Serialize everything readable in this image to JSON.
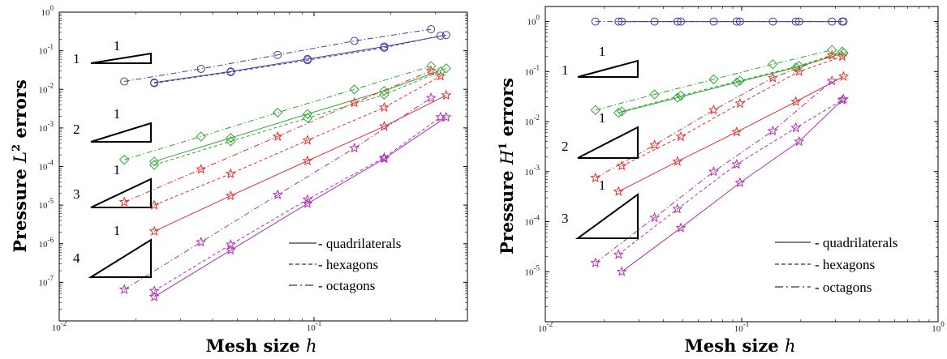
{
  "colors": {
    "p1": "#3f3f9e",
    "p2": "#2fa62f",
    "p3": "#e03030",
    "p4": "#b030b0",
    "frame": "#000000"
  },
  "chart_data": [
    {
      "type": "line",
      "xscale": "log",
      "yscale": "log",
      "xlim": [
        0.01,
        0.4
      ],
      "ylim": [
        1e-08,
        1
      ],
      "xticks": [
        "10",
        "10"
      ],
      "xtick_exp": [
        "-2",
        "-1"
      ],
      "yticks_exp": [
        "0",
        "-1",
        "-2",
        "-3",
        "-4",
        "-5",
        "-6",
        "-7"
      ],
      "ytick_base": "10",
      "xlabel": "Mesh size",
      "xlabel_math": "h",
      "ylabel": "Pressure",
      "ylabel_math": "L",
      "ylabel_sup": "2",
      "ylabel_suffix": "errors",
      "legend": [
        {
          "label": "- quadrilaterals",
          "style": "solid"
        },
        {
          "label": "- hexagons",
          "style": "dashed"
        },
        {
          "label": "- octagons",
          "style": "dashdot"
        }
      ],
      "slope_triangles": [
        {
          "label": "1",
          "run": "1"
        },
        {
          "label": "2",
          "run": "1"
        },
        {
          "label": "3",
          "run": "1"
        },
        {
          "label": "4",
          "run": "1"
        }
      ],
      "series": [
        {
          "degree": 1,
          "style": "solid",
          "marker": "circle",
          "x": [
            0.0236,
            0.0471,
            0.0943,
            0.1886,
            0.3301
          ],
          "y": [
            0.015,
            0.029,
            0.061,
            0.128,
            0.255
          ]
        },
        {
          "degree": 1,
          "style": "dashed",
          "marker": "circle",
          "x": [
            0.0236,
            0.0471,
            0.0943,
            0.1886,
            0.3137
          ],
          "y": [
            0.0145,
            0.028,
            0.057,
            0.12,
            0.245
          ]
        },
        {
          "degree": 1,
          "style": "dashdot",
          "marker": "circle",
          "x": [
            0.018,
            0.036,
            0.072,
            0.144,
            0.288
          ],
          "y": [
            0.016,
            0.034,
            0.078,
            0.18,
            0.36
          ]
        },
        {
          "degree": 2,
          "style": "solid",
          "marker": "diamond",
          "x": [
            0.0236,
            0.0471,
            0.0943,
            0.1886,
            0.3301
          ],
          "y": [
            0.000135,
            0.00055,
            0.0023,
            0.0091,
            0.035
          ]
        },
        {
          "degree": 2,
          "style": "dashed",
          "marker": "diamond",
          "x": [
            0.0236,
            0.0471,
            0.0943,
            0.1886,
            0.3137
          ],
          "y": [
            0.00011,
            0.00045,
            0.0018,
            0.0073,
            0.029
          ]
        },
        {
          "degree": 2,
          "style": "dashdot",
          "marker": "diamond",
          "x": [
            0.018,
            0.036,
            0.072,
            0.144,
            0.288
          ],
          "y": [
            0.00015,
            0.0006,
            0.0025,
            0.01,
            0.04
          ]
        },
        {
          "degree": 3,
          "style": "solid",
          "marker": "star",
          "x": [
            0.0236,
            0.0471,
            0.0943,
            0.1886,
            0.3301
          ],
          "y": [
            2.1e-06,
            1.75e-05,
            0.00014,
            0.0011,
            0.007
          ]
        },
        {
          "degree": 3,
          "style": "dashed",
          "marker": "star",
          "x": [
            0.0236,
            0.0471,
            0.0943,
            0.1886,
            0.3137
          ],
          "y": [
            1e-05,
            6.5e-05,
            0.00048,
            0.0034,
            0.022
          ]
        },
        {
          "degree": 3,
          "style": "dashdot",
          "marker": "star",
          "x": [
            0.018,
            0.036,
            0.072,
            0.144,
            0.288
          ],
          "y": [
            1.2e-05,
            8.5e-05,
            0.0006,
            0.0045,
            0.03
          ]
        },
        {
          "degree": 4,
          "style": "solid",
          "marker": "star",
          "x": [
            0.0236,
            0.0471,
            0.0943,
            0.1886,
            0.3301
          ],
          "y": [
            4.2e-08,
            6.8e-07,
            1.1e-05,
            0.00016,
            0.0019
          ]
        },
        {
          "degree": 4,
          "style": "dashed",
          "marker": "star",
          "x": [
            0.0236,
            0.0471,
            0.0943,
            0.1886,
            0.3137
          ],
          "y": [
            6e-08,
            9.5e-07,
            1.4e-05,
            0.00017,
            0.0019
          ]
        },
        {
          "degree": 4,
          "style": "dashdot",
          "marker": "star",
          "x": [
            0.018,
            0.036,
            0.072,
            0.144,
            0.288
          ],
          "y": [
            6.5e-08,
            1.1e-06,
            1.85e-05,
            0.0003,
            0.006
          ]
        }
      ]
    },
    {
      "type": "line",
      "xscale": "log",
      "yscale": "log",
      "xlim": [
        0.01,
        1
      ],
      "ylim": [
        1e-06,
        2
      ],
      "xticks": [
        "10",
        "10",
        "10"
      ],
      "xtick_exp": [
        "-2",
        "-1",
        "0"
      ],
      "yticks_exp": [
        "0",
        "-1",
        "-2",
        "-3",
        "-4",
        "-5"
      ],
      "ytick_base": "10",
      "xlabel": "Mesh size",
      "xlabel_math": "h",
      "ylabel": "Pressure",
      "ylabel_math": "H",
      "ylabel_sup": "1",
      "ylabel_suffix": "errors",
      "legend": [
        {
          "label": "- quadrilaterals",
          "style": "solid"
        },
        {
          "label": "- hexagons",
          "style": "dashed"
        },
        {
          "label": "- octagons",
          "style": "dashdot"
        }
      ],
      "slope_triangles": [
        {
          "label": "1",
          "run": "1"
        },
        {
          "label": "2",
          "run": "1"
        },
        {
          "label": "3",
          "run": "1"
        }
      ],
      "series": [
        {
          "degree": 1,
          "style": "solid",
          "marker": "circle",
          "x": [
            0.0236,
            0.0471,
            0.0943,
            0.1886,
            0.3301
          ],
          "y": [
            1,
            1,
            1,
            1,
            1
          ]
        },
        {
          "degree": 1,
          "style": "dashed",
          "marker": "circle",
          "x": [
            0.0245,
            0.049,
            0.098,
            0.196,
            0.325
          ],
          "y": [
            1,
            1,
            1,
            1,
            1
          ]
        },
        {
          "degree": 1,
          "style": "dashdot",
          "marker": "circle",
          "x": [
            0.018,
            0.036,
            0.072,
            0.144,
            0.288
          ],
          "y": [
            1,
            1,
            1,
            1,
            1
          ]
        },
        {
          "degree": 2,
          "style": "solid",
          "marker": "diamond",
          "x": [
            0.0236,
            0.0471,
            0.0943,
            0.1886,
            0.3301
          ],
          "y": [
            0.015,
            0.03,
            0.061,
            0.12,
            0.235
          ]
        },
        {
          "degree": 2,
          "style": "dashed",
          "marker": "diamond",
          "x": [
            0.0245,
            0.049,
            0.098,
            0.196,
            0.325
          ],
          "y": [
            0.016,
            0.033,
            0.066,
            0.13,
            0.25
          ]
        },
        {
          "degree": 2,
          "style": "dashdot",
          "marker": "diamond",
          "x": [
            0.018,
            0.036,
            0.072,
            0.144,
            0.288
          ],
          "y": [
            0.017,
            0.035,
            0.07,
            0.14,
            0.27
          ]
        },
        {
          "degree": 3,
          "style": "solid",
          "marker": "star",
          "x": [
            0.0236,
            0.0471,
            0.0943,
            0.1886,
            0.3301
          ],
          "y": [
            0.0004,
            0.0016,
            0.0062,
            0.025,
            0.08
          ]
        },
        {
          "degree": 3,
          "style": "dashed",
          "marker": "star",
          "x": [
            0.0245,
            0.049,
            0.098,
            0.196,
            0.325
          ],
          "y": [
            0.0013,
            0.005,
            0.023,
            0.1,
            0.2
          ]
        },
        {
          "degree": 3,
          "style": "dashdot",
          "marker": "star",
          "x": [
            0.018,
            0.036,
            0.072,
            0.144,
            0.288
          ],
          "y": [
            0.00075,
            0.0034,
            0.017,
            0.075,
            0.21
          ]
        },
        {
          "degree": 4,
          "style": "solid",
          "marker": "star",
          "x": [
            0.0245,
            0.049,
            0.098,
            0.196,
            0.325
          ],
          "y": [
            1e-05,
            7.5e-05,
            0.0006,
            0.004,
            0.027
          ]
        },
        {
          "degree": 4,
          "style": "dashed",
          "marker": "star",
          "x": [
            0.0236,
            0.0471,
            0.0943,
            0.1886,
            0.3301
          ],
          "y": [
            2.2e-05,
            0.00018,
            0.0014,
            0.0075,
            0.028
          ]
        },
        {
          "degree": 4,
          "style": "dashdot",
          "marker": "star",
          "x": [
            0.018,
            0.036,
            0.072,
            0.144,
            0.288
          ],
          "y": [
            1.5e-05,
            0.00012,
            0.001,
            0.0065,
            0.065
          ]
        }
      ]
    }
  ]
}
